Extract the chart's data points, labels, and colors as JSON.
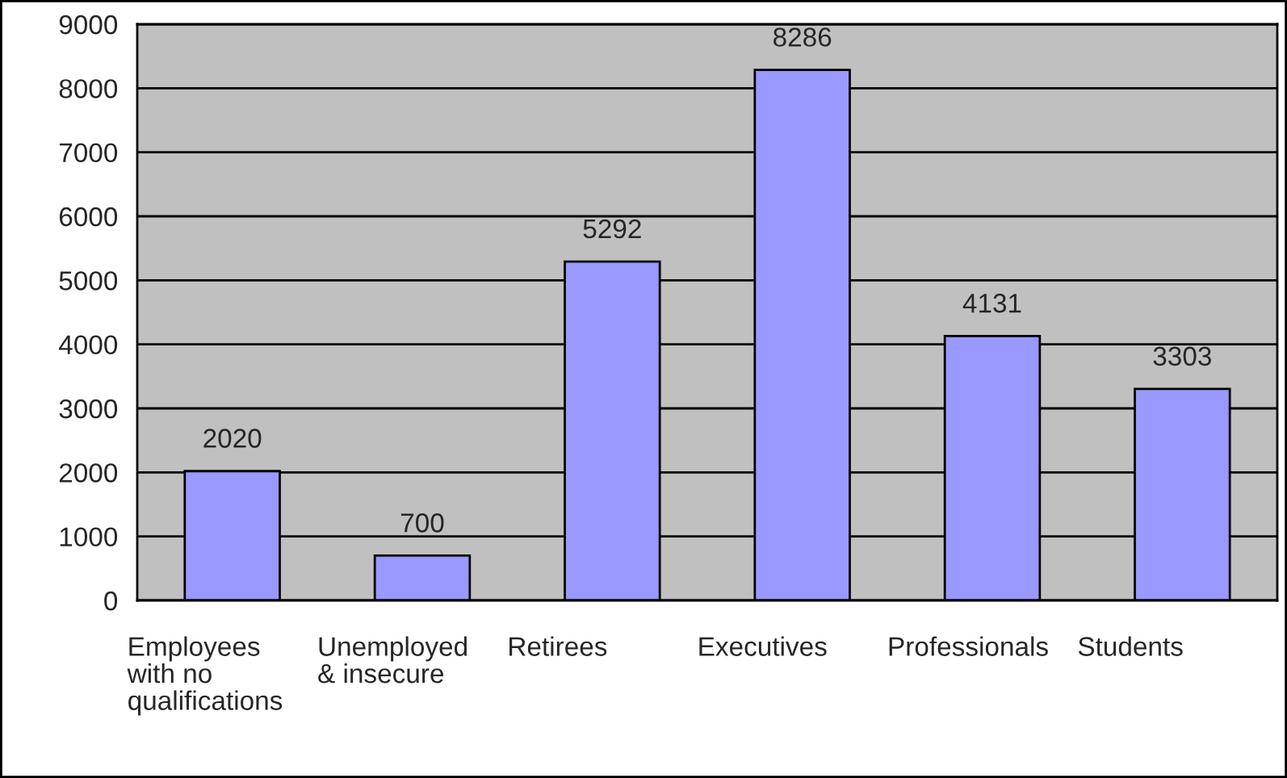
{
  "chart_data": {
    "type": "bar",
    "categories": [
      "Employees\nwith no\nqualifications",
      "Unemployed\n& insecure",
      "Retirees",
      "Executives",
      "Professionals",
      "Students"
    ],
    "values": [
      2020,
      700,
      5292,
      8286,
      4131,
      3303
    ],
    "color": "#9999ff",
    "ylim": [
      0,
      9000
    ],
    "yticks": [
      0,
      1000,
      2000,
      3000,
      4000,
      5000,
      6000,
      7000,
      8000,
      9000
    ],
    "grid": "y",
    "data_labels": true
  }
}
